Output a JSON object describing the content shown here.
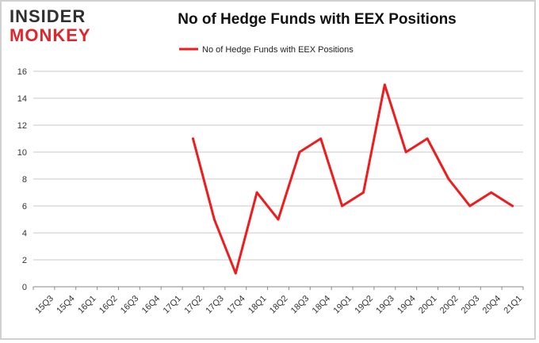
{
  "brand": {
    "line1": "INSIDER",
    "line2": "MONKEY"
  },
  "chart_data": {
    "type": "line",
    "title": "No of Hedge Funds with EEX Positions",
    "categories": [
      "15Q3",
      "15Q4",
      "16Q1",
      "16Q2",
      "16Q3",
      "16Q4",
      "17Q1",
      "17Q2",
      "17Q3",
      "17Q4",
      "18Q1",
      "18Q2",
      "18Q3",
      "18Q4",
      "19Q1",
      "19Q2",
      "19Q3",
      "19Q4",
      "20Q1",
      "20Q2",
      "20Q3",
      "20Q4",
      "21Q1"
    ],
    "series": [
      {
        "name": "No of Hedge Funds with EEX Positions",
        "color": "#ee1c1c",
        "values": [
          null,
          null,
          null,
          null,
          null,
          null,
          null,
          11,
          5,
          1,
          7,
          5,
          10,
          11,
          6,
          7,
          15,
          10,
          11,
          8,
          6,
          7,
          6
        ]
      }
    ],
    "ylim": [
      0,
      16
    ],
    "yticks": [
      0,
      2,
      4,
      6,
      8,
      10,
      12,
      14,
      16
    ],
    "grid": true,
    "legend_position": "top-center"
  }
}
